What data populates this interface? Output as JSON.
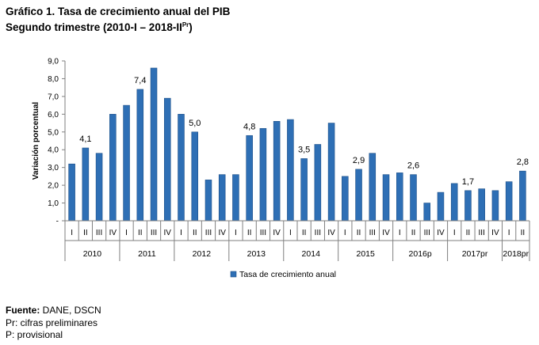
{
  "title_line1": "Gráfico 1. Tasa de crecimiento anual del PIB",
  "title_line2_main": "Segundo trimestre (2010-I – 2018-II",
  "title_line2_sup": "Pr",
  "title_line2_close": ")",
  "source_label": "Fuente:",
  "source_text": " DANE, DSCN",
  "note_pr": "Pr: cifras preliminares",
  "note_p": "P: provisional",
  "colors": {
    "bar": "#2e6fb5",
    "bar_dark": "#1d4f88",
    "axis": "#7f7f7f"
  },
  "chart_data": {
    "type": "bar",
    "ylabel": "Variación porcentual",
    "ylim": [
      0,
      9
    ],
    "yticks": [
      "9,0",
      "8,0",
      "7,0",
      "6,0",
      "5,0",
      "4,0",
      "3,0",
      "2,0",
      "1,0",
      "-"
    ],
    "quarters": [
      "I",
      "II",
      "III",
      "IV",
      "I",
      "II",
      "III",
      "IV",
      "I",
      "II",
      "III",
      "IV",
      "I",
      "II",
      "III",
      "IV",
      "I",
      "II",
      "III",
      "IV",
      "I",
      "II",
      "III",
      "IV",
      "I",
      "II",
      "III",
      "IV",
      "I",
      "II",
      "III",
      "IV",
      "I",
      "II"
    ],
    "years": [
      "2010",
      "2011",
      "2012",
      "2013",
      "2014",
      "2015",
      "2016p",
      "2017pr",
      "2018pr"
    ],
    "series": [
      {
        "name": "Tasa de crecimiento anual",
        "values": [
          3.2,
          4.1,
          3.8,
          6.0,
          6.5,
          7.4,
          8.6,
          6.9,
          6.0,
          5.0,
          2.3,
          2.6,
          2.6,
          4.8,
          5.2,
          5.6,
          5.7,
          3.5,
          4.3,
          5.5,
          2.5,
          2.9,
          3.8,
          2.6,
          2.7,
          2.6,
          1.0,
          1.6,
          2.1,
          1.7,
          1.8,
          1.7,
          2.2,
          2.8
        ]
      }
    ],
    "data_labels": [
      {
        "index": 1,
        "text": "4,1"
      },
      {
        "index": 5,
        "text": "7,4"
      },
      {
        "index": 9,
        "text": "5,0"
      },
      {
        "index": 13,
        "text": "4,8"
      },
      {
        "index": 17,
        "text": "3,5"
      },
      {
        "index": 21,
        "text": "2,9"
      },
      {
        "index": 25,
        "text": "2,6"
      },
      {
        "index": 29,
        "text": "1,7"
      },
      {
        "index": 33,
        "text": "2,8"
      }
    ],
    "legend_position": "bottom"
  }
}
